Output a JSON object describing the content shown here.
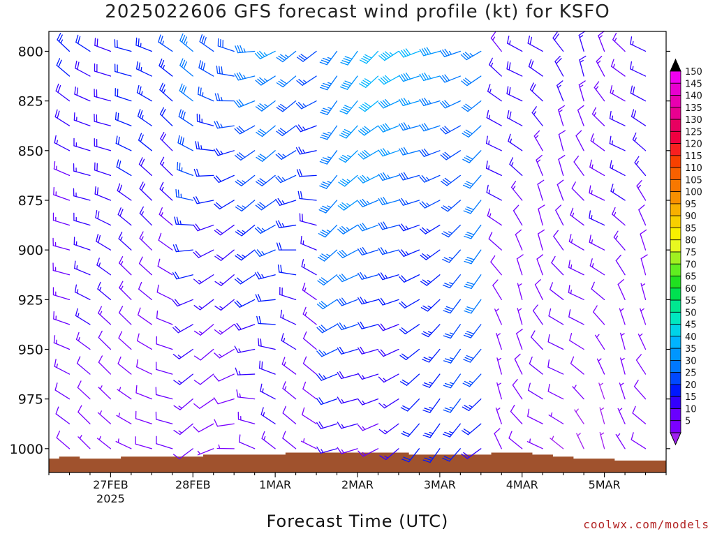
{
  "chart_data": {
    "type": "wind-barb-profile",
    "title": "2025022606 GFS forecast wind profile (kt) for KSFO",
    "xlabel": "Forecast Time (UTC)",
    "ylabel": "",
    "credit": "coolwx.com/models",
    "x_ticks": [
      {
        "label": "27FEB",
        "sublabel": "2025",
        "hour": 18
      },
      {
        "label": "28FEB",
        "sublabel": "",
        "hour": 42
      },
      {
        "label": "1MAR",
        "sublabel": "",
        "hour": 66
      },
      {
        "label": "2MAR",
        "sublabel": "",
        "hour": 90
      },
      {
        "label": "3MAR",
        "sublabel": "",
        "hour": 114
      },
      {
        "label": "4MAR",
        "sublabel": "",
        "hour": 138
      },
      {
        "label": "5MAR",
        "sublabel": "",
        "hour": 162
      }
    ],
    "x_range_hours": [
      0,
      180
    ],
    "pressure_ticks": [
      800,
      825,
      850,
      875,
      900,
      925,
      950,
      975,
      1000
    ],
    "pressure_range": [
      790,
      1012
    ],
    "pressure_levels": [
      800,
      812.5,
      825,
      837.5,
      850,
      862.5,
      875,
      887.5,
      900,
      912.5,
      925,
      937.5,
      950,
      962.5,
      975,
      987.5,
      1000
    ],
    "forecast_hour_step": 6,
    "units": "kt",
    "colorbar": {
      "levels": [
        5,
        10,
        15,
        20,
        25,
        30,
        35,
        40,
        45,
        50,
        55,
        60,
        65,
        70,
        75,
        80,
        85,
        90,
        95,
        100,
        105,
        110,
        115,
        120,
        125,
        130,
        135,
        140,
        145,
        150
      ],
      "colors": [
        "#7b00ff",
        "#6a00ff",
        "#3300ff",
        "#0018ff",
        "#0048ff",
        "#0078ff",
        "#0096ff",
        "#00b4ff",
        "#00d4e8",
        "#00e8c0",
        "#00e890",
        "#00e050",
        "#20e020",
        "#60ee20",
        "#a0f020",
        "#e8f820",
        "#f8f000",
        "#f8d000",
        "#f8b000",
        "#f89000",
        "#f87800",
        "#f86000",
        "#f84000",
        "#f82020",
        "#f00040",
        "#e80060",
        "#e80090",
        "#e800b0",
        "#e800d0",
        "#f000f0"
      ],
      "under_color": "#a020f0",
      "over_color": "#000000"
    },
    "terrain": {
      "color": "#a0522d",
      "surface_pressure_by_hour": [
        [
          0,
          1005
        ],
        [
          6,
          1004
        ],
        [
          12,
          1005
        ],
        [
          18,
          1005
        ],
        [
          24,
          1004
        ],
        [
          30,
          1004
        ],
        [
          36,
          1004
        ],
        [
          42,
          1004
        ],
        [
          48,
          1003
        ],
        [
          54,
          1003
        ],
        [
          60,
          1003
        ],
        [
          66,
          1003
        ],
        [
          72,
          1002
        ],
        [
          78,
          1002
        ],
        [
          84,
          1002
        ],
        [
          90,
          1002
        ],
        [
          96,
          1002
        ],
        [
          102,
          1002
        ],
        [
          108,
          1003
        ],
        [
          114,
          1003
        ],
        [
          120,
          1003
        ],
        [
          126,
          1003
        ],
        [
          132,
          1002
        ],
        [
          138,
          1002
        ],
        [
          144,
          1003
        ],
        [
          150,
          1004
        ],
        [
          156,
          1005
        ],
        [
          162,
          1005
        ],
        [
          168,
          1006
        ],
        [
          174,
          1006
        ],
        [
          180,
          1006
        ]
      ]
    }
  }
}
